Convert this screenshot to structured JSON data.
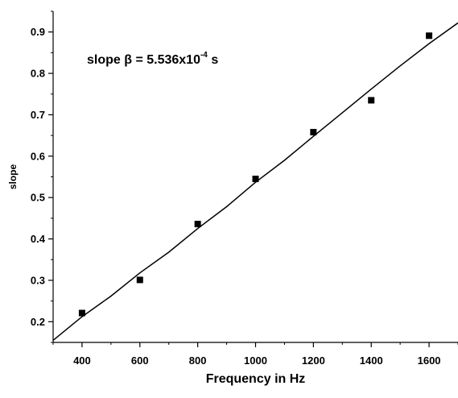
{
  "chart_data": {
    "type": "scatter",
    "xlabel": "Frequency in Hz",
    "ylabel": "slope",
    "xlim": [
      300,
      1700
    ],
    "ylim": [
      0.15,
      0.95
    ],
    "x_ticks": [
      400,
      600,
      800,
      1000,
      1200,
      1400,
      1600
    ],
    "y_ticks": [
      0.2,
      0.3,
      0.4,
      0.5,
      0.6,
      0.7,
      0.8,
      0.9
    ],
    "x_tick_labels": [
      "400",
      "600",
      "800",
      "1000",
      "1200",
      "1400",
      "1600"
    ],
    "y_tick_labels": [
      "0.2",
      "0.3",
      "0.4",
      "0.5",
      "0.6",
      "0.7",
      "0.8",
      "0.9"
    ],
    "grid": false,
    "legend": "none",
    "series": [
      {
        "marker": "square",
        "color": "#000000",
        "points": [
          {
            "x": 400,
            "y": 0.221
          },
          {
            "x": 600,
            "y": 0.301
          },
          {
            "x": 800,
            "y": 0.436
          },
          {
            "x": 1000,
            "y": 0.545
          },
          {
            "x": 1200,
            "y": 0.658
          },
          {
            "x": 1400,
            "y": 0.735
          },
          {
            "x": 1600,
            "y": 0.891
          }
        ]
      },
      {
        "line": "fit",
        "color": "#000000",
        "points": [
          {
            "x": 300,
            "y": 0.155
          },
          {
            "x": 400,
            "y": 0.212
          },
          {
            "x": 500,
            "y": 0.262
          },
          {
            "x": 600,
            "y": 0.318
          },
          {
            "x": 700,
            "y": 0.368
          },
          {
            "x": 800,
            "y": 0.425
          },
          {
            "x": 900,
            "y": 0.478
          },
          {
            "x": 1000,
            "y": 0.537
          },
          {
            "x": 1100,
            "y": 0.59
          },
          {
            "x": 1200,
            "y": 0.648
          },
          {
            "x": 1300,
            "y": 0.705
          },
          {
            "x": 1400,
            "y": 0.762
          },
          {
            "x": 1500,
            "y": 0.818
          },
          {
            "x": 1600,
            "y": 0.872
          },
          {
            "x": 1700,
            "y": 0.922
          }
        ]
      }
    ],
    "annotation": {
      "prefix": "slope ",
      "symbol": "β",
      "mid": " = 5.536x10",
      "sup": "-4",
      "suffix": " s"
    }
  }
}
